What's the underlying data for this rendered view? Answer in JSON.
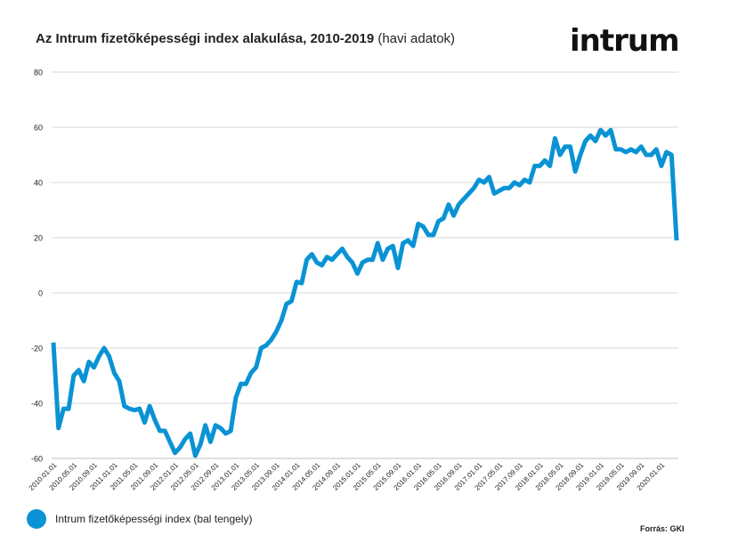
{
  "title": {
    "bold": "Az Intrum fizetőképességi index alakulása, 2010-2019",
    "sub": " (havi adatok)"
  },
  "logo": "intrum",
  "legend": {
    "label": "Intrum fizetőképességi index (bal tengely)"
  },
  "source": "Forrás: GKI",
  "colors": {
    "series": "#0a93d4",
    "grid": "#d9d9d9"
  },
  "chart_data": {
    "type": "line",
    "ylim": [
      -60,
      80
    ],
    "yticks": [
      -60,
      -40,
      -20,
      0,
      20,
      40,
      60,
      80
    ],
    "grid": true,
    "xtick_labels": [
      "2010.01.01",
      "2010.05.01",
      "2010.09.01",
      "2011.01.01",
      "2011.05.01",
      "2011.09.01",
      "2012.01.01",
      "2012.05.01",
      "2012.09.01",
      "2013.01.01",
      "2013.05.01",
      "2013.09.01",
      "2014.01.01",
      "2014.05.01",
      "2014.09.01",
      "2015.01.01",
      "2015.05.01",
      "2015.09.01",
      "2016.01.01",
      "2016.05.01",
      "2016.09.01",
      "2017.01.01",
      "2017.05.01",
      "2017.09.01",
      "2018.01.01",
      "2018.05.01",
      "2018.09.01",
      "2019.01.01",
      "2019.05.01",
      "2019.09.01",
      "2020.01.01"
    ],
    "series": [
      {
        "name": "Intrum fizetőképességi index (bal tengely)",
        "values": [
          -18,
          -49,
          -42,
          -42,
          -30,
          -28,
          -32,
          -25,
          -27,
          -23,
          -20,
          -23,
          -29,
          -32,
          -41,
          -42,
          -42.5,
          -42,
          -47,
          -41,
          -46,
          -50,
          -50,
          -54,
          -58,
          -56,
          -53,
          -51,
          -59,
          -55,
          -48,
          -54,
          -48,
          -49,
          -51,
          -50,
          -38,
          -33,
          -33,
          -29,
          -27,
          -20,
          -19,
          -17,
          -14,
          -10,
          -4,
          -3,
          4,
          3.5,
          12,
          14,
          11,
          10,
          13,
          12,
          14,
          16,
          13,
          11,
          7,
          11,
          12,
          12,
          18,
          12,
          16,
          17,
          9,
          18,
          19,
          17,
          25,
          24,
          21,
          21,
          26,
          27,
          32,
          28,
          32,
          34,
          36,
          38,
          41,
          40,
          42,
          36,
          37,
          38,
          38,
          40,
          39,
          41,
          40,
          46,
          46,
          48,
          46,
          56,
          50,
          53,
          53,
          44,
          50,
          55,
          57,
          55,
          59,
          57,
          59,
          52,
          52,
          51,
          52,
          51,
          53,
          50,
          50,
          52,
          46,
          51,
          50,
          19
        ]
      }
    ]
  }
}
